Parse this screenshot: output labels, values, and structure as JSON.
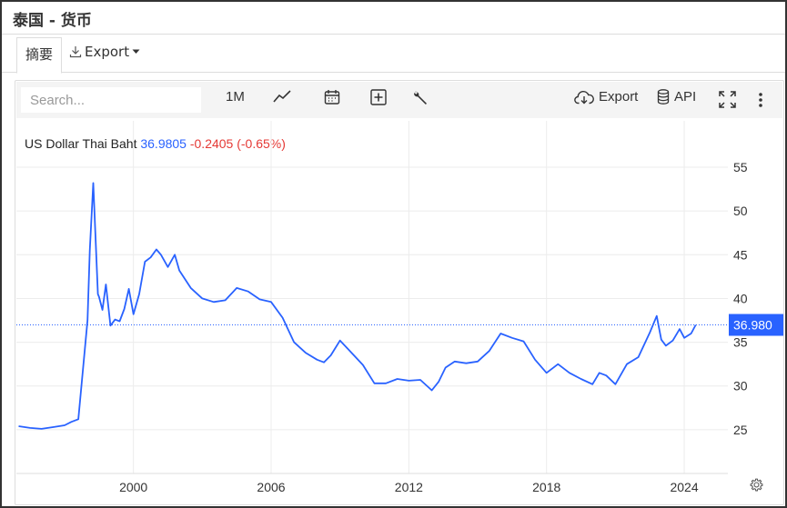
{
  "window": {
    "title": "泰国 - 货币"
  },
  "tabs": {
    "summary": "摘要",
    "export": "Export"
  },
  "toolbar": {
    "search_placeholder": "Search...",
    "interval": "1M",
    "export": "Export",
    "api": "API"
  },
  "colors": {
    "line": "#2962ff",
    "negative": "#e53935",
    "last_tag": "#2962ff"
  },
  "icons": [
    "download-icon",
    "caret-down-icon",
    "line-chart-icon",
    "calendar-icon",
    "plus-box-icon",
    "wrench-icon",
    "cloud-download-icon",
    "database-icon",
    "fullscreen-icon",
    "more-vertical-icon",
    "gear-icon"
  ],
  "legend": {
    "name": "US Dollar Thai Baht",
    "last": "36.9805",
    "change": "-0.2405 (-0.65%)"
  },
  "chart_data": {
    "type": "line",
    "title": "",
    "xlabel": "",
    "ylabel": "",
    "xlim": [
      1994.9,
      2025.9
    ],
    "ylim": [
      20.0,
      60.3
    ],
    "y_ticks": [
      25,
      30,
      35,
      40,
      45,
      50,
      55
    ],
    "x_ticks": [
      2000,
      2006,
      2012,
      2018,
      2024
    ],
    "last_value_label": "36.980",
    "grid": true,
    "series": [
      {
        "name": "US Dollar Thai Baht",
        "x": [
          1995.0,
          1995.5,
          1996.0,
          1996.5,
          1997.0,
          1997.3,
          1997.6,
          1998.0,
          1998.1,
          1998.25,
          1998.45,
          1998.5,
          1998.65,
          1998.8,
          1999.0,
          1999.2,
          1999.4,
          1999.6,
          1999.8,
          2000.0,
          2000.25,
          2000.5,
          2000.75,
          2001.0,
          2001.2,
          2001.5,
          2001.8,
          2002.0,
          2002.5,
          2003.0,
          2003.5,
          2004.0,
          2004.5,
          2005.0,
          2005.5,
          2006.0,
          2006.5,
          2007.0,
          2007.5,
          2008.0,
          2008.3,
          2008.6,
          2009.0,
          2009.5,
          2010.0,
          2010.5,
          2011.0,
          2011.5,
          2012.0,
          2012.5,
          2013.0,
          2013.3,
          2013.6,
          2014.0,
          2014.5,
          2015.0,
          2015.5,
          2016.0,
          2016.5,
          2017.0,
          2017.5,
          2018.0,
          2018.5,
          2019.0,
          2019.5,
          2020.0,
          2020.3,
          2020.6,
          2021.0,
          2021.5,
          2022.0,
          2022.5,
          2022.8,
          2023.0,
          2023.2,
          2023.5,
          2023.8,
          2024.0,
          2024.3,
          2024.5
        ],
        "values": [
          25.4,
          25.2,
          25.1,
          25.3,
          25.5,
          25.9,
          26.2,
          37.5,
          45.5,
          53.2,
          40.5,
          40.2,
          38.7,
          41.6,
          36.9,
          37.6,
          37.4,
          38.8,
          41.1,
          38.2,
          40.5,
          44.2,
          44.7,
          45.6,
          45.0,
          43.6,
          45.0,
          43.2,
          41.2,
          40.0,
          39.6,
          39.8,
          41.2,
          40.8,
          39.9,
          39.6,
          37.8,
          35.0,
          33.8,
          33.0,
          32.7,
          33.5,
          35.2,
          33.8,
          32.4,
          30.3,
          30.3,
          30.8,
          30.6,
          30.7,
          29.5,
          30.5,
          32.1,
          32.8,
          32.6,
          32.8,
          34.0,
          36.0,
          35.5,
          35.1,
          33.0,
          31.5,
          32.5,
          31.5,
          30.8,
          30.2,
          31.5,
          31.2,
          30.2,
          32.5,
          33.3,
          36.1,
          38.0,
          35.3,
          34.6,
          35.2,
          36.5,
          35.5,
          36.0,
          36.98
        ]
      }
    ]
  }
}
